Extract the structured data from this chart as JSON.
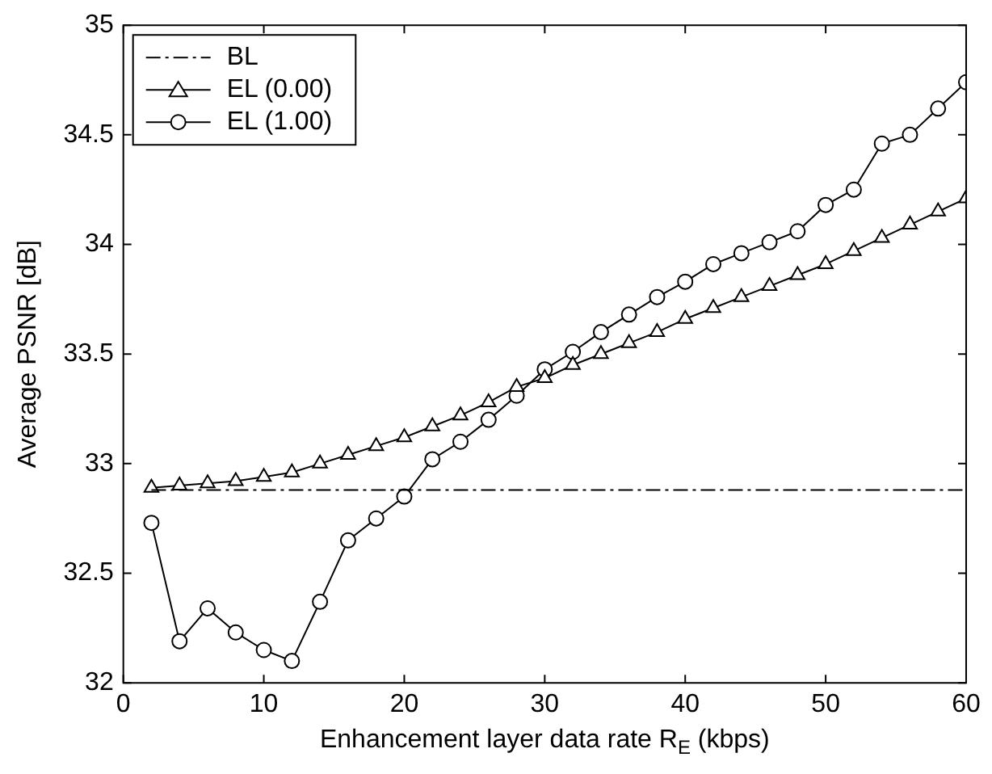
{
  "chart_data": {
    "type": "line",
    "xlabel": "Enhancement layer data rate R$_{E}$ (kbps)",
    "ylabel": "Average PSNR [dB]",
    "xlim": [
      0,
      60
    ],
    "xticks": [
      0,
      10,
      20,
      30,
      40,
      50,
      60
    ],
    "ylim": [
      32,
      35
    ],
    "yticks": [
      32,
      32.5,
      33,
      33.5,
      34,
      34.5,
      35
    ],
    "grid": false,
    "legend": "top left",
    "x": [
      2,
      4,
      6,
      8,
      10,
      12,
      14,
      16,
      18,
      20,
      22,
      24,
      26,
      28,
      30,
      32,
      34,
      36,
      38,
      40,
      42,
      44,
      46,
      48,
      50,
      52,
      54,
      56,
      58,
      60
    ],
    "series": [
      {
        "name": "BL",
        "color": "#000000",
        "marker": "none",
        "line_style": "dashed",
        "x": [
          2,
          60
        ],
        "values": [
          32.88,
          32.88
        ]
      },
      {
        "name": "EL (0.00)",
        "color": "#000000",
        "marker": "triangle",
        "line_style": "solid",
        "values": [
          32.89,
          32.9,
          32.91,
          32.92,
          32.94,
          32.96,
          33.0,
          33.04,
          33.08,
          33.12,
          33.17,
          33.22,
          33.28,
          33.35,
          33.39,
          33.45,
          33.5,
          33.55,
          33.6,
          33.66,
          33.71,
          33.76,
          33.81,
          33.86,
          33.91,
          33.97,
          34.03,
          34.09,
          34.15,
          34.21
        ]
      },
      {
        "name": "EL (1.00)",
        "color": "#000000",
        "marker": "circle",
        "line_style": "solid",
        "values": [
          32.73,
          32.19,
          32.34,
          32.23,
          32.15,
          32.1,
          32.37,
          32.65,
          32.75,
          32.85,
          33.02,
          33.1,
          33.2,
          33.31,
          33.43,
          33.51,
          33.6,
          33.68,
          33.76,
          33.83,
          33.91,
          33.96,
          34.01,
          34.06,
          34.18,
          34.25,
          34.46,
          34.5,
          34.62,
          34.74
        ]
      }
    ]
  }
}
